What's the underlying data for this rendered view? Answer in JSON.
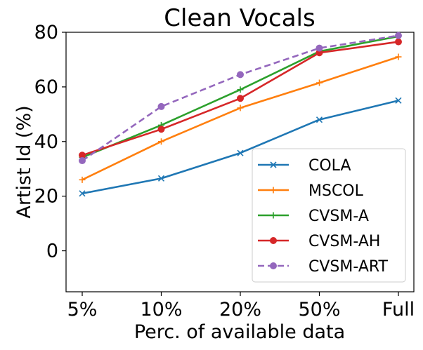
{
  "chart_data": {
    "type": "line",
    "title": "Clean Vocals",
    "xlabel": "Perc. of available data",
    "ylabel": "Artist Id (%)",
    "categories": [
      "5%",
      "10%",
      "20%",
      "50%",
      "Full"
    ],
    "ylim": [
      -15,
      80
    ],
    "yticks": [
      0,
      20,
      40,
      60,
      80
    ],
    "grid": false,
    "legend_position": "lower-right",
    "series": [
      {
        "name": "COLA",
        "values": [
          21,
          26.5,
          35.8,
          48,
          55
        ],
        "color": "#1f77b4",
        "marker": "x",
        "linestyle": "solid"
      },
      {
        "name": "MSCOL",
        "values": [
          26,
          40,
          52.3,
          61.5,
          71
        ],
        "color": "#ff7f0e",
        "marker": "+",
        "linestyle": "solid"
      },
      {
        "name": "CVSM-A",
        "values": [
          34.2,
          46,
          59,
          73,
          78.5
        ],
        "color": "#2ca02c",
        "marker": "+",
        "linestyle": "solid"
      },
      {
        "name": "CVSM-AH",
        "values": [
          35,
          44.5,
          55.8,
          72.5,
          76.5
        ],
        "color": "#d62728",
        "marker": "o",
        "linestyle": "solid"
      },
      {
        "name": "CVSM-ART",
        "values": [
          33,
          52.8,
          64.5,
          74.2,
          78.8
        ],
        "color": "#9467bd",
        "marker": "o",
        "linestyle": "dashed"
      }
    ]
  }
}
